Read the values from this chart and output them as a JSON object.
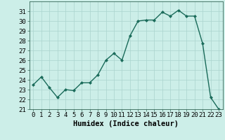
{
  "xlabel": "Humidex (Indice chaleur)",
  "x": [
    0,
    1,
    2,
    3,
    4,
    5,
    6,
    7,
    8,
    9,
    10,
    11,
    12,
    13,
    14,
    15,
    16,
    17,
    18,
    19,
    20,
    21,
    22,
    23
  ],
  "y": [
    23.5,
    24.3,
    23.2,
    22.2,
    23.0,
    22.9,
    23.7,
    23.7,
    24.5,
    26.0,
    26.7,
    26.0,
    28.5,
    30.0,
    30.1,
    30.1,
    30.9,
    30.5,
    31.1,
    30.5,
    30.5,
    27.7,
    22.2,
    21.0
  ],
  "line_color": "#1a6b5a",
  "marker": "D",
  "marker_size": 2.0,
  "bg_color": "#cceee8",
  "grid_color": "#aad4ce",
  "ylim": [
    21,
    32
  ],
  "yticks": [
    21,
    22,
    23,
    24,
    25,
    26,
    27,
    28,
    29,
    30,
    31
  ],
  "tick_fontsize": 6.5,
  "label_fontsize": 7.5,
  "linewidth": 1.0
}
